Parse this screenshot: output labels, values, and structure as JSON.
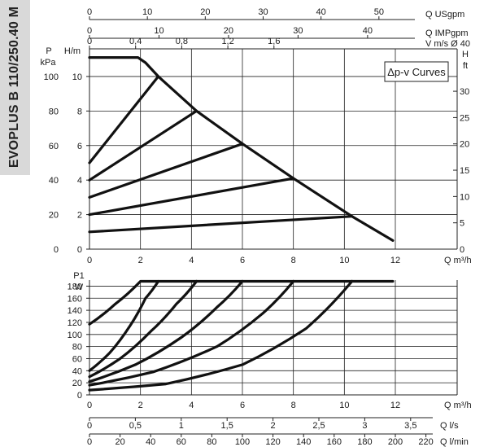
{
  "side_title": "EVOPLUS B 110/250.40 M",
  "chart_data": [
    {
      "type": "line",
      "legend_box": "Δp-v Curves",
      "xlabel": "Q m³/h",
      "xlim": [
        0,
        12
      ],
      "x_ticks": [
        "0",
        "2",
        "4",
        "6",
        "8",
        "10",
        "12"
      ],
      "ylabel_left_top": "P",
      "ylabel_left_unit": "kPa",
      "ylabel_left2": "H/m",
      "ylabel_right": "H",
      "ylabel_right_unit": "ft",
      "ylim_m": [
        0,
        11.6
      ],
      "y_ticks_m": [
        "0",
        "2",
        "4",
        "6",
        "8",
        "10"
      ],
      "y_ticks_kpa": [
        "0",
        "20",
        "40",
        "60",
        "80",
        "100"
      ],
      "y_ticks_ft": [
        "0",
        "5",
        "10",
        "15",
        "20",
        "25",
        "30"
      ],
      "top_axes": [
        {
          "label": "Q USgpm",
          "ticks": [
            "0",
            "10",
            "20",
            "30",
            "40",
            "50"
          ]
        },
        {
          "label": "Q IMPgpm",
          "ticks": [
            "0",
            "10",
            "20",
            "30",
            "40"
          ]
        },
        {
          "label": "V m/s Ø 40",
          "ticks": [
            "0",
            "0,4",
            "0,8",
            "1,2",
            "1,6"
          ]
        }
      ],
      "series": [
        {
          "x": [
            0,
            1.9,
            2.2,
            2.7,
            4.2,
            6.0,
            8.0,
            10.3,
            11.9
          ],
          "y": [
            11.1,
            11.1,
            10.8,
            10.0,
            8.0,
            6.1,
            4.1,
            1.9,
            0.5
          ]
        },
        {
          "x": [
            0,
            2.7
          ],
          "y": [
            5.0,
            10.0
          ]
        },
        {
          "x": [
            0,
            4.2
          ],
          "y": [
            4.0,
            8.0
          ]
        },
        {
          "x": [
            0,
            6.0
          ],
          "y": [
            3.0,
            6.1
          ]
        },
        {
          "x": [
            0,
            8.0
          ],
          "y": [
            2.0,
            4.1
          ]
        },
        {
          "x": [
            0,
            10.3
          ],
          "y": [
            1.0,
            1.9
          ]
        }
      ]
    },
    {
      "type": "line",
      "ylabel_top": "P1",
      "ylabel_unit": "W",
      "ylim": [
        0,
        190
      ],
      "y_ticks": [
        "0",
        "20",
        "40",
        "60",
        "80",
        "100",
        "120",
        "140",
        "160",
        "180"
      ],
      "xlabel": "Q m³/h",
      "xlim": [
        0,
        12
      ],
      "x_ticks": [
        "0",
        "2",
        "4",
        "6",
        "8",
        "10",
        "12"
      ],
      "bottom_axes": [
        {
          "label": "Q l/s",
          "ticks": [
            "0",
            "0,5",
            "1",
            "1,5",
            "2",
            "2,5",
            "3",
            "3,5"
          ]
        },
        {
          "label": "Q l/min",
          "ticks": [
            "0",
            "20",
            "40",
            "60",
            "80",
            "100",
            "120",
            "140",
            "160",
            "180",
            "200",
            "220"
          ]
        }
      ],
      "series": [
        {
          "x": [
            0,
            1.0,
            2.0,
            11.9
          ],
          "y": [
            117,
            150,
            188,
            188
          ]
        },
        {
          "x": [
            0,
            0.8,
            1.6,
            2.2,
            2.7
          ],
          "y": [
            40,
            70,
            115,
            160,
            188
          ]
        },
        {
          "x": [
            0,
            1.2,
            2.4,
            3.4,
            4.2
          ],
          "y": [
            30,
            60,
            105,
            150,
            188
          ]
        },
        {
          "x": [
            0,
            1.8,
            3.6,
            5.0,
            6.0
          ],
          "y": [
            22,
            50,
            95,
            145,
            188
          ]
        },
        {
          "x": [
            0,
            2.5,
            5.0,
            6.8,
            8.0
          ],
          "y": [
            16,
            38,
            80,
            135,
            188
          ]
        },
        {
          "x": [
            0,
            3.0,
            6.0,
            8.5,
            10.3
          ],
          "y": [
            8,
            18,
            50,
            110,
            188
          ]
        }
      ]
    }
  ]
}
